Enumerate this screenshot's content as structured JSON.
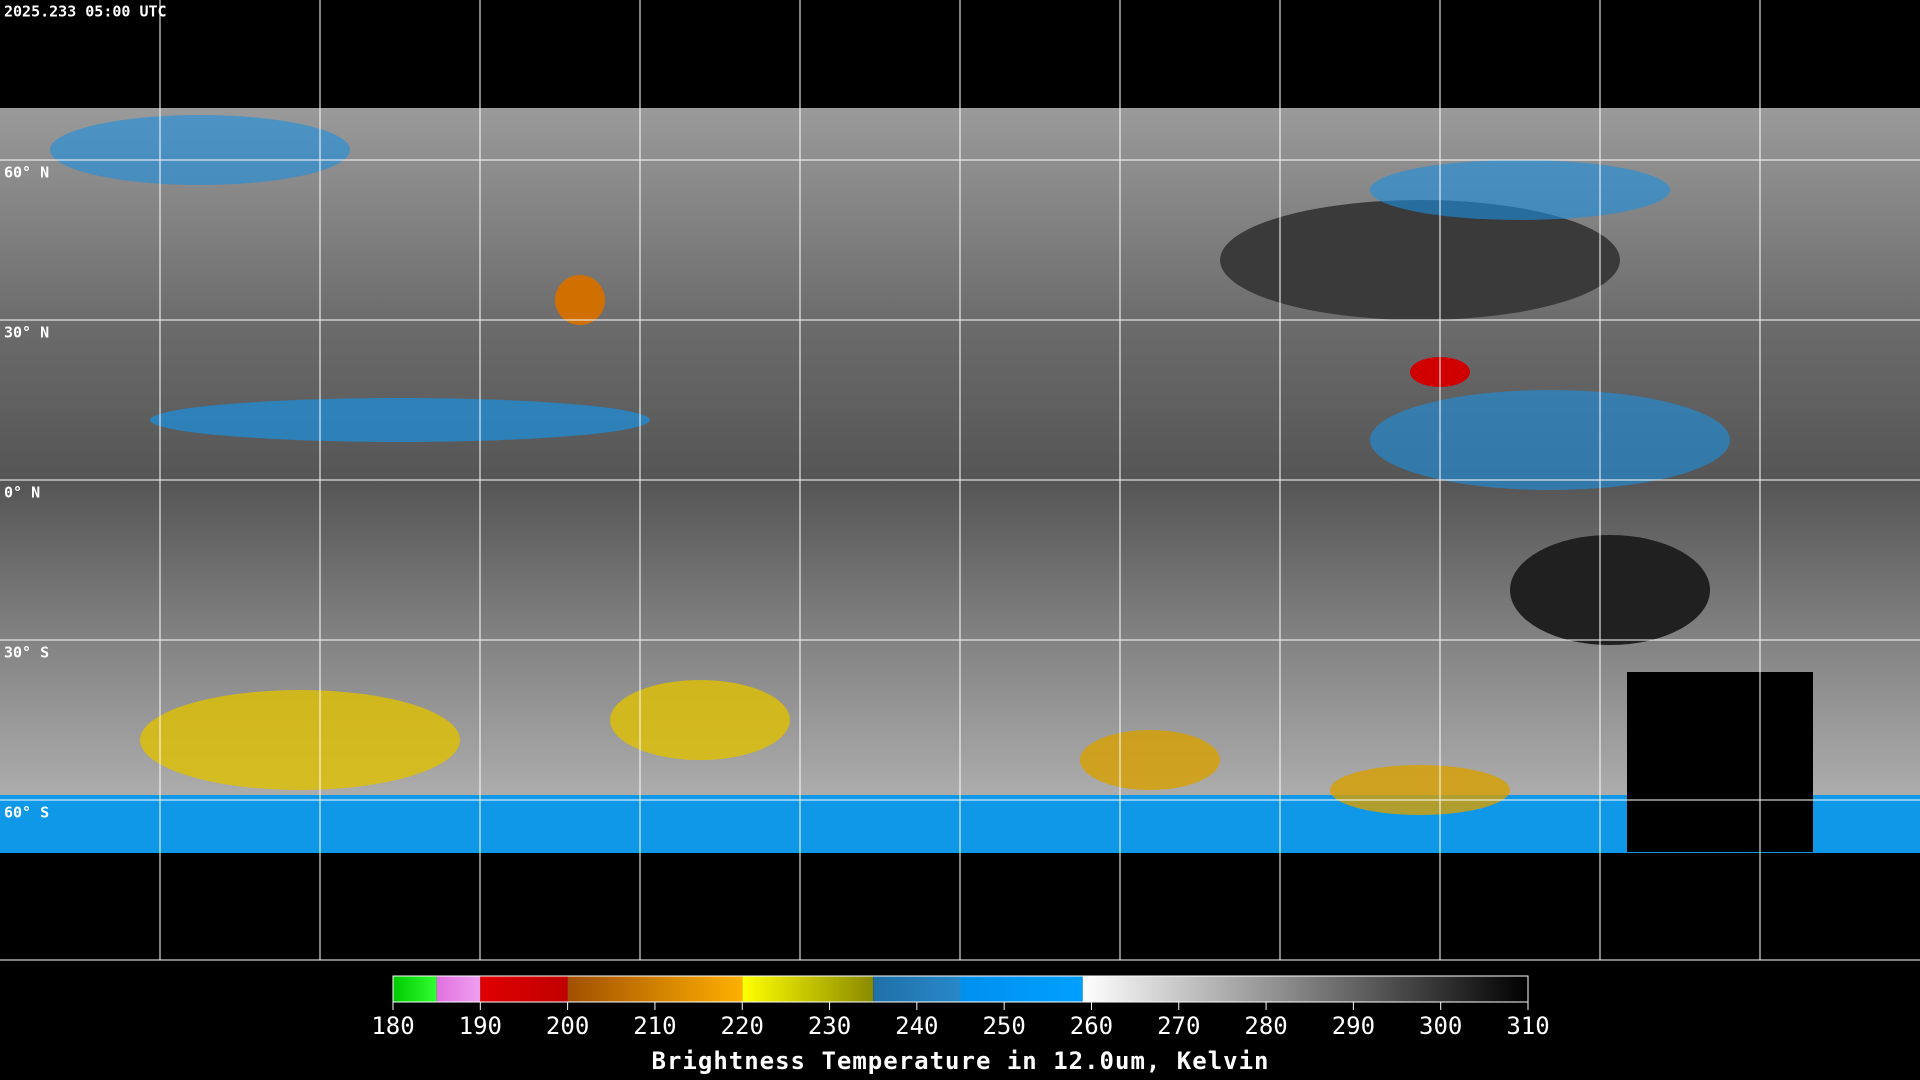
{
  "header": {
    "timestamp": "2025.233 05:00 UTC"
  },
  "map": {
    "latitude_labels": [
      "60° N",
      "30° N",
      "0° N",
      "30° S",
      "60° S"
    ]
  },
  "colorbar": {
    "range": [
      180,
      310
    ],
    "ticks": [
      180,
      190,
      200,
      210,
      220,
      230,
      240,
      250,
      260,
      270,
      280,
      290,
      300,
      310
    ],
    "segments": [
      {
        "from": 180,
        "to": 185,
        "colors": [
          "#00c800",
          "#30ff30"
        ]
      },
      {
        "from": 185,
        "to": 190,
        "colors": [
          "#e070e0",
          "#f0a0f0"
        ]
      },
      {
        "from": 190,
        "to": 200,
        "colors": [
          "#e00000",
          "#c00000"
        ]
      },
      {
        "from": 200,
        "to": 220,
        "colors": [
          "#a05000",
          "#ffb000"
        ]
      },
      {
        "from": 220,
        "to": 235,
        "colors": [
          "#ffff00",
          "#8a8a00"
        ]
      },
      {
        "from": 235,
        "to": 245,
        "colors": [
          "#2070a8",
          "#2888c8"
        ]
      },
      {
        "from": 245,
        "to": 259,
        "colors": [
          "#0090f0",
          "#00a0ff"
        ]
      },
      {
        "from": 259,
        "to": 310,
        "colors": [
          "#ffffff",
          "#000000"
        ]
      }
    ],
    "title": "Brightness Temperature in 12.0um, Kelvin"
  }
}
